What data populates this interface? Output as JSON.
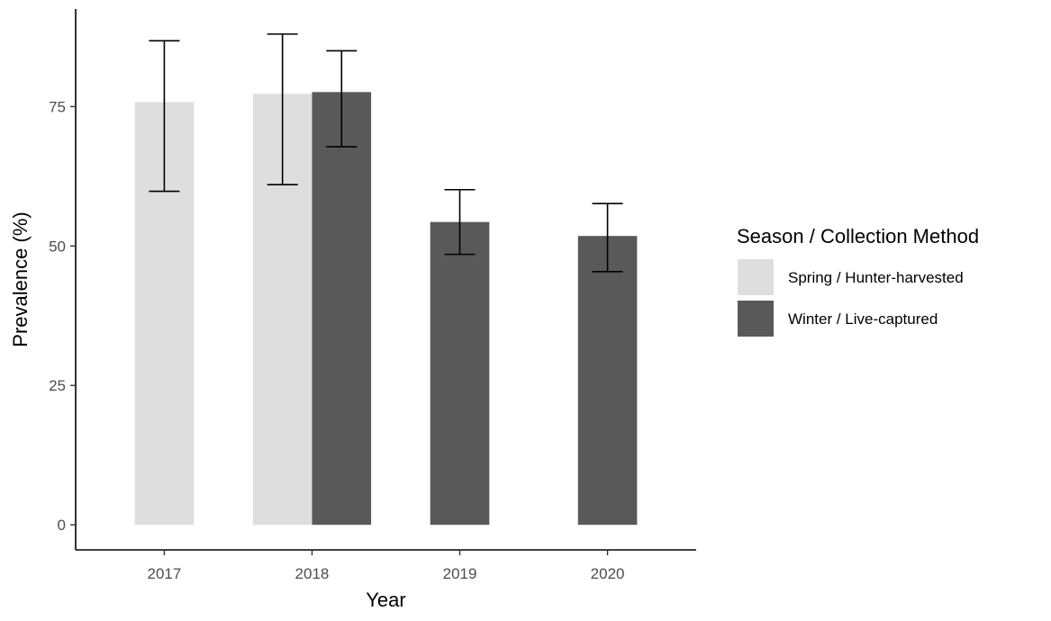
{
  "chart_data": {
    "type": "bar",
    "categories": [
      "2017",
      "2018",
      "2019",
      "2020"
    ],
    "series": [
      {
        "name": "Spring / Hunter-harvested",
        "color": "#dedede",
        "values": [
          75.8,
          77.3,
          null,
          null
        ],
        "lower": [
          59.8,
          61.0,
          null,
          null
        ],
        "upper": [
          86.8,
          88.0,
          null,
          null
        ]
      },
      {
        "name": "Winter / Live-captured",
        "color": "#595959",
        "values": [
          null,
          77.6,
          54.3,
          51.8
        ],
        "lower": [
          null,
          67.8,
          48.5,
          45.4
        ],
        "upper": [
          null,
          85.0,
          60.1,
          57.6
        ]
      }
    ],
    "xlabel": "Year",
    "ylabel": "Prevalence (%)",
    "yticks": [
      0,
      25,
      50,
      75
    ],
    "ylim": [
      -4.5,
      92.5
    ],
    "grid": false,
    "legend": {
      "title": "Season / Collection Method",
      "position": "right"
    },
    "error_bars": true
  }
}
